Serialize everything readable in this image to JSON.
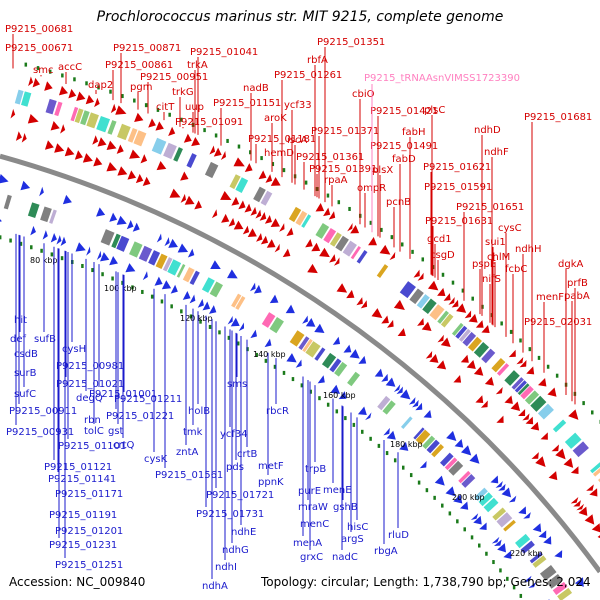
{
  "title": "Prochlorococcus marinus str. MIT 9215, complete genome",
  "footer": {
    "accession": "Accession: NC_009840",
    "summary": "Topology: circular; Length: 1,738,790 bp; Genes: 2,024"
  },
  "colors": {
    "forward_label": "#d40000",
    "reverse_label": "#1a1acc",
    "trna_label": "#ff80c0",
    "backbone": "#8a8a8a",
    "tick_mark": "#1a7a1a"
  },
  "scale_labels": [
    "80 kbp",
    "100 kbp",
    "120 kbp",
    "140 kbp",
    "160 kbp",
    "180 kbp",
    "200 kbp",
    "220 kbp"
  ],
  "forward_labels": [
    "P9215_00681",
    "P9215_00671",
    "smc",
    "accC",
    "dap2",
    "P9215_00871",
    "P9215_00861",
    "pgm",
    "trkG",
    "citT",
    "P9215_00951",
    "uup",
    "trkA",
    "P9215_01041",
    "P9215_01091",
    "P9215_01151",
    "nadB",
    "P9215_01181",
    "aroK",
    "hemD",
    "ycf33",
    "iscA",
    "rbfA",
    "P9215_01261",
    "P9215_01351",
    "cbiO",
    "P9215_01421",
    "P9215_01371",
    "P9215_01361",
    "P9215_01391",
    "rpaA",
    "fabH",
    "plsC",
    "P9215_01491",
    "plsX",
    "fabD",
    "ompR",
    "pcnB",
    "ndhD",
    "P9215_01681",
    "ndhF",
    "P9215_01621",
    "P9215_01591",
    "P9215_01651",
    "P9215_01631",
    "gcd1",
    "csgD",
    "cysC",
    "sui1",
    "ndhH",
    "chlM",
    "pspE",
    "fcbC",
    "nifS",
    "dgkA",
    "prfB",
    "menF",
    "pabA",
    "P9215_02031"
  ],
  "trna_labels": [
    "P9215_tRNAAsnVIMSS1723390"
  ],
  "reverse_labels": [
    "hit",
    "def",
    "sufB",
    "csdB",
    "surB",
    "sufC",
    "P9215_00911",
    "P9215_00931",
    "cysH",
    "P9215_00981",
    "P9215_01021",
    "degQ",
    "P9215_01001",
    "rbn",
    "tolC",
    "P9215_01101",
    "P9215_01121",
    "P9215_01141",
    "P9215_01171",
    "P9215_01191",
    "P9215_01201",
    "P9215_01231",
    "P9215_01251",
    "P9215_01211",
    "gst",
    "P9215_01221",
    "crtQ",
    "cysK",
    "sms",
    "holB",
    "tmk",
    "zntA",
    "ycf34",
    "rbcR",
    "crtB",
    "pds",
    "P9215_01561",
    "metF",
    "ppnK",
    "trpB",
    "purE",
    "menE",
    "mraW",
    "P9215_01721",
    "P9215_01731",
    "menC",
    "gshB",
    "ndhE",
    "hisC",
    "menA",
    "argS",
    "ndhG",
    "grxC",
    "nadC",
    "rluD",
    "rbgA",
    "ndhI",
    "ndhA"
  ]
}
